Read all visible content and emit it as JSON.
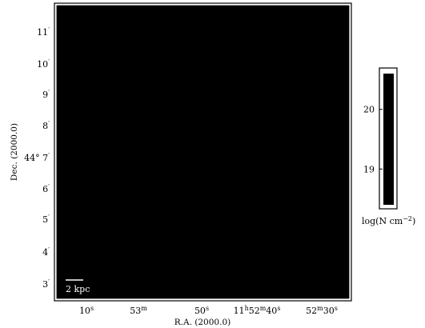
{
  "chart_data": {
    "type": "heatmap",
    "xlabel": "R.A. (2000.0)",
    "ylabel": "Dec. (2000.0)",
    "x_ticks": [
      {
        "main": "10",
        "sup": "s"
      },
      {
        "main": "53",
        "sup": "m"
      },
      {
        "main": "50",
        "sup": "s"
      },
      {
        "parts": [
          [
            "11",
            "h"
          ],
          [
            "52",
            "m"
          ],
          [
            "40",
            "s"
          ]
        ]
      },
      {
        "parts": [
          [
            "52",
            "m"
          ],
          [
            "30",
            "s"
          ]
        ]
      }
    ],
    "y_ticks": [
      {
        "main": "11",
        "sup": "′"
      },
      {
        "main": "10",
        "sup": "′"
      },
      {
        "main": "9",
        "sup": "′"
      },
      {
        "main": "8",
        "sup": "′"
      },
      {
        "main": "44° 7",
        "sup": "′"
      },
      {
        "main": "6",
        "sup": "′"
      },
      {
        "main": "5",
        "sup": "′"
      },
      {
        "main": "4",
        "sup": "′"
      },
      {
        "main": "3",
        "sup": "′"
      }
    ],
    "scale_bar_label": "2 kpc",
    "colorbar": {
      "label": "log(N cm",
      "label_sup": "−2",
      "label_close": ")",
      "ticks": [
        "20",
        "19"
      ],
      "values": [
        20,
        19
      ],
      "range": [
        18.4,
        20.6
      ]
    },
    "image_color": "#000000"
  }
}
